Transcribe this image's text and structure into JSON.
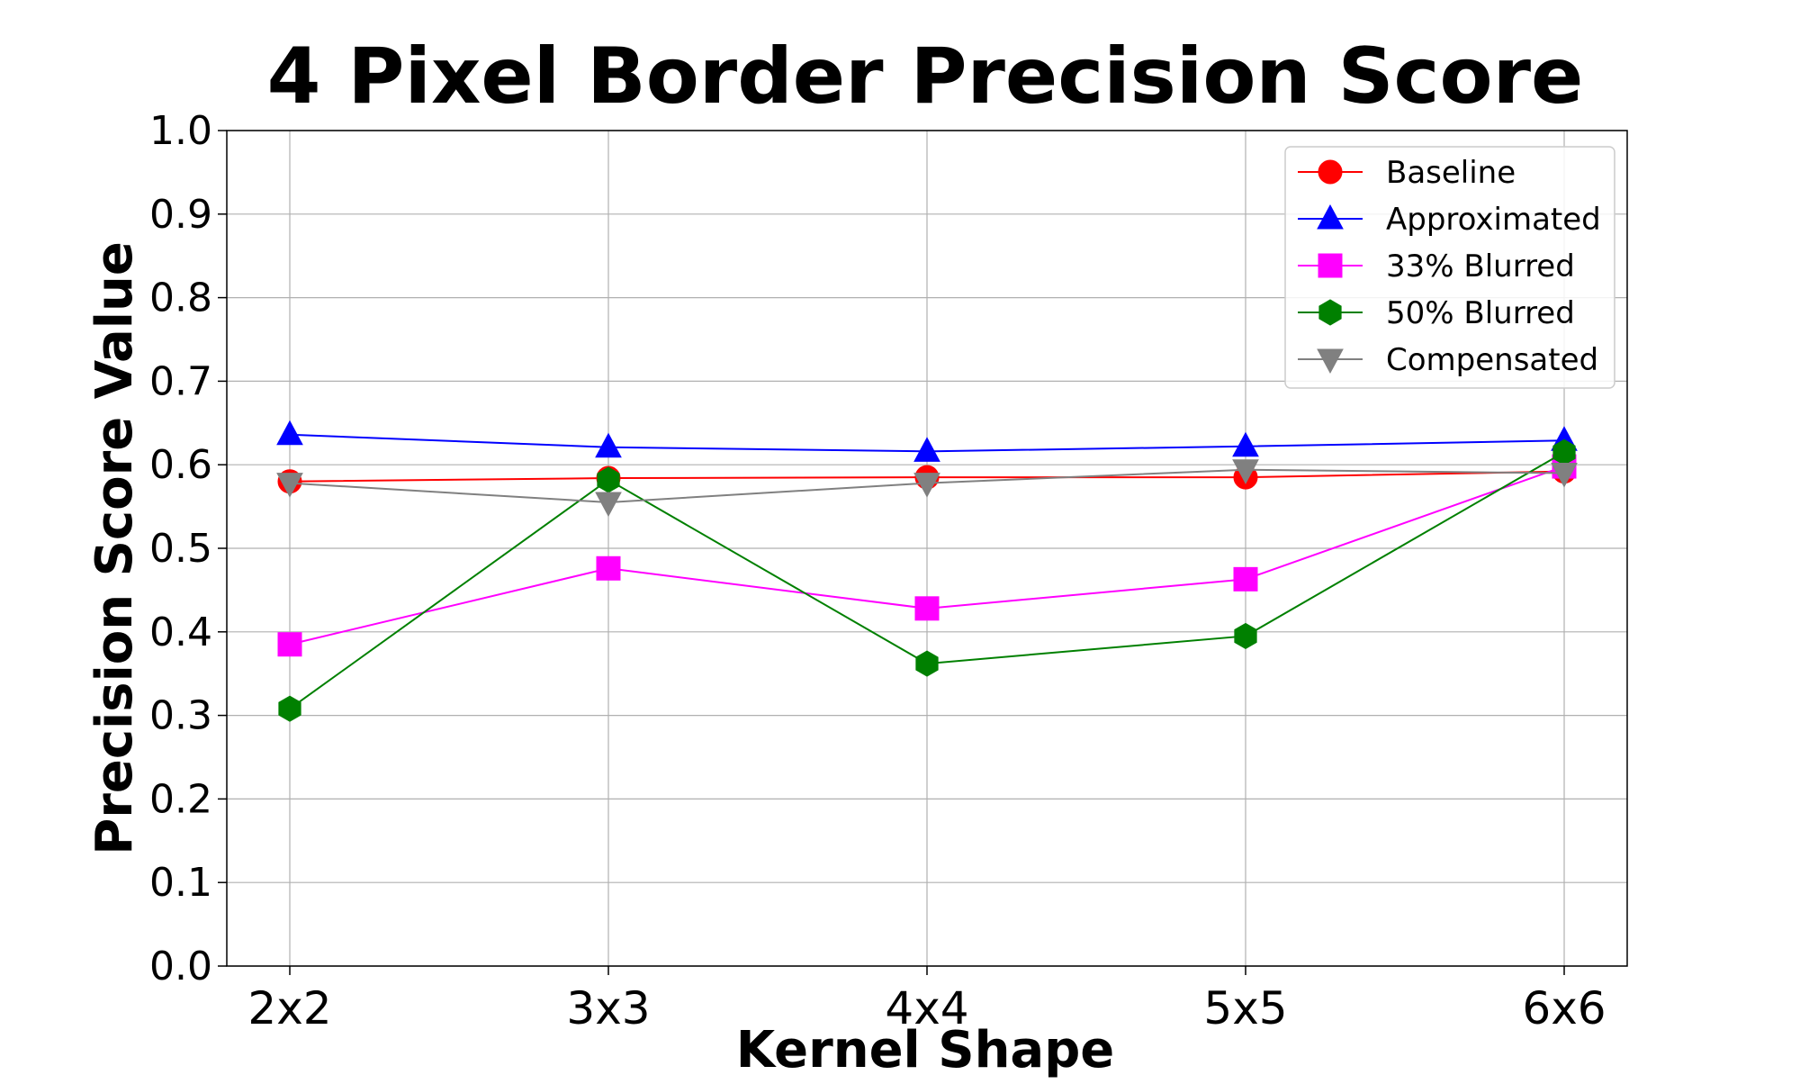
{
  "chart_data": {
    "type": "line",
    "title": "4 Pixel Border Precision Score",
    "xlabel": "Kernel Shape",
    "ylabel": "Precision Score Value",
    "categories": [
      "2x2",
      "3x3",
      "4x4",
      "5x5",
      "6x6"
    ],
    "ylim": [
      0.0,
      1.0
    ],
    "yticks": [
      "0.0",
      "0.1",
      "0.2",
      "0.3",
      "0.4",
      "0.5",
      "0.6",
      "0.7",
      "0.8",
      "0.9",
      "1.0"
    ],
    "grid": true,
    "legend_position": "top-right",
    "series": [
      {
        "name": "Baseline",
        "color": "#ff0000",
        "marker": "circle",
        "values": [
          0.58,
          0.584,
          0.585,
          0.585,
          0.592
        ]
      },
      {
        "name": "Approximated",
        "color": "#0000ff",
        "marker": "triangle-up",
        "values": [
          0.636,
          0.621,
          0.616,
          0.622,
          0.629
        ]
      },
      {
        "name": "33% Blurred",
        "color": "#ff00ff",
        "marker": "square",
        "values": [
          0.385,
          0.476,
          0.428,
          0.463,
          0.598
        ]
      },
      {
        "name": "50% Blurred",
        "color": "#008000",
        "marker": "hexagon",
        "values": [
          0.308,
          0.582,
          0.362,
          0.395,
          0.615
        ]
      },
      {
        "name": "Compensated",
        "color": "#808080",
        "marker": "triangle-down",
        "values": [
          0.578,
          0.555,
          0.578,
          0.594,
          0.59
        ]
      }
    ]
  }
}
